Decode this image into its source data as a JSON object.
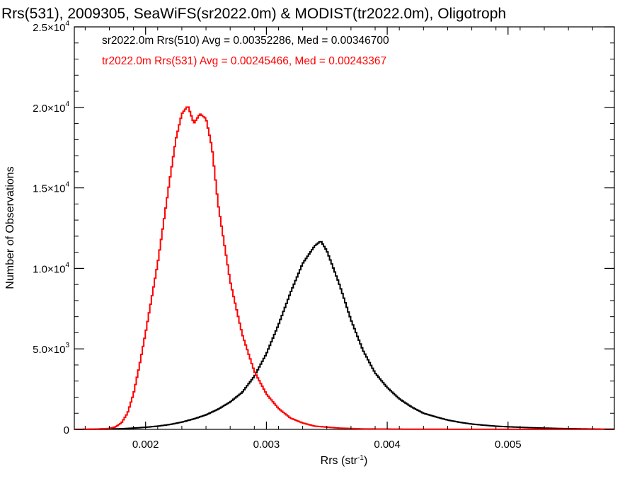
{
  "chart_data": {
    "type": "line",
    "title": "Rrs(531), 2009305, SeaWiFS(sr2022.0m) & MODIST(tr2022.0m), Oligotroph",
    "xlabel": "Rrs (str",
    "xlabel_sup": "-1",
    "xlabel_tail": ")",
    "ylabel": "Number of Observations",
    "xlim": [
      0.00141,
      0.00588
    ],
    "ylim": [
      0,
      25000
    ],
    "x_ticks": [
      {
        "value": 0.002,
        "label": "0.002"
      },
      {
        "value": 0.003,
        "label": "0.003"
      },
      {
        "value": 0.004,
        "label": "0.004"
      },
      {
        "value": 0.005,
        "label": "0.005"
      }
    ],
    "y_ticks": [
      {
        "value": 0,
        "mant": "0",
        "exp": ""
      },
      {
        "value": 5000,
        "mant": "5.0×10",
        "exp": "3"
      },
      {
        "value": 10000,
        "mant": "1.0×10",
        "exp": "4"
      },
      {
        "value": 15000,
        "mant": "1.5×10",
        "exp": "4"
      },
      {
        "value": 20000,
        "mant": "2.0×10",
        "exp": "4"
      },
      {
        "value": 25000,
        "mant": "2.5×10",
        "exp": "4"
      }
    ],
    "grid": false,
    "legend_position": "top-left",
    "annotations": [
      {
        "text": "sr2022.0m Rrs(510) Avg = 0.00352286, Med = 0.00346700",
        "color": "#000000"
      },
      {
        "text": "tr2022.0m Rrs(531) Avg = 0.00245466, Med = 0.00243367",
        "color": "#ff0000"
      }
    ],
    "series": [
      {
        "color": "#000000",
        "x": [
          0.0015,
          0.0017,
          0.0018,
          0.0019,
          0.002,
          0.0021,
          0.0022,
          0.0023,
          0.0024,
          0.0025,
          0.0026,
          0.0027,
          0.0028,
          0.0029,
          0.003,
          0.0031,
          0.0032,
          0.0033,
          0.0034,
          0.00345,
          0.0035,
          0.0036,
          0.0037,
          0.0038,
          0.0039,
          0.004,
          0.0041,
          0.0042,
          0.0043,
          0.0044,
          0.0045,
          0.0046,
          0.0047,
          0.0048,
          0.0049,
          0.005,
          0.0052,
          0.0054,
          0.0056,
          0.0058
        ],
        "y": [
          0,
          20,
          40,
          80,
          130,
          200,
          300,
          450,
          650,
          900,
          1250,
          1700,
          2300,
          3300,
          4700,
          6500,
          8500,
          10300,
          11400,
          11700,
          11100,
          9100,
          6800,
          4900,
          3500,
          2600,
          1900,
          1400,
          1000,
          780,
          580,
          440,
          330,
          260,
          200,
          160,
          100,
          60,
          30,
          10
        ]
      },
      {
        "color": "#ff0000",
        "x": [
          0.0014,
          0.0016,
          0.0017,
          0.00175,
          0.0018,
          0.00185,
          0.0019,
          0.00195,
          0.002,
          0.0021,
          0.0022,
          0.00225,
          0.0023,
          0.00235,
          0.0024,
          0.00245,
          0.0025,
          0.00255,
          0.0026,
          0.0027,
          0.0028,
          0.0029,
          0.003,
          0.0031,
          0.0032,
          0.0033,
          0.0034,
          0.0036,
          0.0038,
          0.0042,
          0.0058
        ],
        "y": [
          0,
          20,
          60,
          150,
          400,
          1000,
          2200,
          4000,
          6000,
          10300,
          15500,
          18000,
          19600,
          20100,
          19000,
          19600,
          19300,
          17500,
          14000,
          9200,
          5900,
          3600,
          2200,
          1300,
          700,
          400,
          200,
          80,
          30,
          10,
          0
        ]
      }
    ]
  }
}
